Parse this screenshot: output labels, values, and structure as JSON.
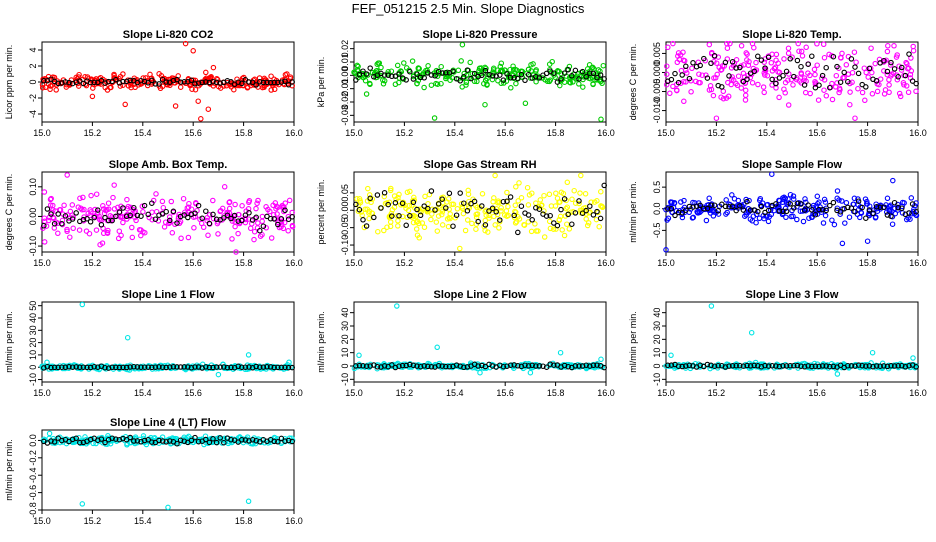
{
  "title": "FEF_051215  2.5 Min. Slope Diagnostics",
  "colors": {
    "background": "#ffffff",
    "overlay": "#000000"
  },
  "chart_data": [
    {
      "type": "scatter",
      "title": "Slope Li-820 CO2",
      "xlabel": "",
      "ylabel": "Licor ppm per min.",
      "color": "#ff0000",
      "xlim": [
        15.0,
        16.0
      ],
      "ylim": [
        -5,
        5
      ],
      "xticks": [
        15.0,
        15.2,
        15.4,
        15.6,
        15.8,
        16.0
      ],
      "yticks": [
        -4,
        -2,
        0,
        2,
        4
      ],
      "xtick_labels": [
        "15.0",
        "15.2",
        "15.4",
        "15.6",
        "15.8",
        "16.0"
      ],
      "ytick_labels": [
        "-4",
        "-2",
        "0",
        "2",
        "4"
      ],
      "spread": 0.6,
      "outliers": [
        [
          15.57,
          4.8
        ],
        [
          15.6,
          3.9
        ],
        [
          15.65,
          1.2
        ],
        [
          15.68,
          1.8
        ],
        [
          15.62,
          -2.4
        ],
        [
          15.66,
          -3.4
        ],
        [
          15.63,
          -4.6
        ],
        [
          15.53,
          -3.0
        ],
        [
          15.33,
          -2.8
        ],
        [
          15.2,
          -1.8
        ]
      ],
      "overlay_spread": 0.2
    },
    {
      "type": "scatter",
      "title": "Slope Li-820 Pressure",
      "xlabel": "",
      "ylabel": "kPa per min.",
      "color": "#00cc00",
      "xlim": [
        15.0,
        16.0
      ],
      "ylim": [
        -0.035,
        0.025
      ],
      "xticks": [
        15.0,
        15.2,
        15.4,
        15.6,
        15.8,
        16.0
      ],
      "yticks": [
        -0.03,
        -0.02,
        -0.01,
        0.0,
        0.01,
        0.02
      ],
      "xtick_labels": [
        "15.0",
        "15.2",
        "15.4",
        "15.6",
        "15.8",
        "16.0"
      ],
      "ytick_labels": [
        "-0.03",
        "-0.02",
        "-0.01",
        "0.00",
        "0.01",
        "0.02"
      ],
      "spread": 0.006,
      "outliers": [
        [
          15.32,
          -0.032
        ],
        [
          15.98,
          -0.033
        ],
        [
          15.43,
          0.023
        ],
        [
          15.52,
          -0.022
        ],
        [
          15.68,
          -0.021
        ],
        [
          15.05,
          -0.014
        ]
      ],
      "overlay_spread": 0.003
    },
    {
      "type": "scatter",
      "title": "Slope Li-820 Temp.",
      "xlabel": "",
      "ylabel": "degrees C per min.",
      "color": "#ff00ff",
      "xlim": [
        15.0,
        16.0
      ],
      "ylim": [
        -0.013,
        0.008
      ],
      "xticks": [
        15.0,
        15.2,
        15.4,
        15.6,
        15.8,
        16.0
      ],
      "yticks": [
        -0.01,
        -0.005,
        0.0,
        0.005
      ],
      "xtick_labels": [
        "15.0",
        "15.2",
        "15.4",
        "15.6",
        "15.8",
        "16.0"
      ],
      "ytick_labels": [
        "-0.010",
        "-0.005",
        "0.000",
        "0.005"
      ],
      "spread": 0.005,
      "outliers": [
        [
          15.2,
          -0.012
        ],
        [
          15.75,
          -0.012
        ],
        [
          15.88,
          0.007
        ],
        [
          15.3,
          0.007
        ]
      ],
      "overlay_spread": 0.004
    },
    {
      "type": "scatter",
      "title": "Slope Amb. Box Temp.",
      "xlabel": "",
      "ylabel": "degrees C per min.",
      "color": "#ff00ff",
      "xlim": [
        15.0,
        16.0
      ],
      "ylim": [
        -0.12,
        0.15
      ],
      "xticks": [
        15.0,
        15.2,
        15.4,
        15.6,
        15.8,
        16.0
      ],
      "yticks": [
        -0.1,
        0.0,
        0.1
      ],
      "xtick_labels": [
        "15.0",
        "15.2",
        "15.4",
        "15.6",
        "15.8",
        "16.0"
      ],
      "ytick_labels": [
        "-0.10",
        "0.00",
        "0.10"
      ],
      "spread": 0.05,
      "outliers": [
        [
          15.1,
          0.14
        ],
        [
          15.77,
          -0.12
        ],
        [
          15.24,
          -0.09
        ]
      ],
      "overlay_spread": 0.03
    },
    {
      "type": "scatter",
      "title": "Slope Gas Stream RH",
      "xlabel": "",
      "ylabel": "percent per min.",
      "color": "#ffff00",
      "xlim": [
        15.0,
        16.0
      ],
      "ylim": [
        -0.12,
        0.11
      ],
      "xticks": [
        15.0,
        15.2,
        15.4,
        15.6,
        15.8,
        16.0
      ],
      "yticks": [
        -0.1,
        -0.05,
        0.0,
        0.05
      ],
      "xtick_labels": [
        "15.0",
        "15.2",
        "15.4",
        "15.6",
        "15.8",
        "16.0"
      ],
      "ytick_labels": [
        "-0.10",
        "-0.05",
        "0.00",
        "0.05"
      ],
      "spread": 0.045,
      "outliers": [
        [
          15.42,
          -0.11
        ],
        [
          15.9,
          0.1
        ],
        [
          15.56,
          0.1
        ]
      ],
      "overlay_spread": 0.035
    },
    {
      "type": "scatter",
      "title": "Slope Sample Flow",
      "xlabel": "",
      "ylabel": "ml/min per min.",
      "color": "#0000ff",
      "xlim": [
        15.0,
        16.0
      ],
      "ylim": [
        -1.0,
        0.85
      ],
      "xticks": [
        15.0,
        15.2,
        15.4,
        15.6,
        15.8,
        16.0
      ],
      "yticks": [
        -0.5,
        0.0,
        0.5
      ],
      "xtick_labels": [
        "15.0",
        "15.2",
        "15.4",
        "15.6",
        "15.8",
        "16.0"
      ],
      "ytick_labels": [
        "-0.5",
        "0.0",
        "0.5"
      ],
      "spread": 0.2,
      "outliers": [
        [
          15.0,
          -0.95
        ],
        [
          15.42,
          0.8
        ],
        [
          15.9,
          0.65
        ],
        [
          15.7,
          -0.8
        ],
        [
          15.8,
          -0.75
        ]
      ],
      "overlay_spread": 0.12
    },
    {
      "type": "scatter",
      "title": "Slope Line 1 Flow",
      "xlabel": "",
      "ylabel": "ml/min per min.",
      "color": "#00e5e5",
      "xlim": [
        15.0,
        16.0
      ],
      "ylim": [
        -12,
        53
      ],
      "xticks": [
        15.0,
        15.2,
        15.4,
        15.6,
        15.8,
        16.0
      ],
      "yticks": [
        -10,
        0,
        10,
        20,
        30,
        40,
        50
      ],
      "xtick_labels": [
        "15.0",
        "15.2",
        "15.4",
        "15.6",
        "15.8",
        "16.0"
      ],
      "ytick_labels": [
        "-10",
        "0",
        "10",
        "20",
        "30",
        "40",
        "50"
      ],
      "spread": 1.2,
      "outliers": [
        [
          15.16,
          51
        ],
        [
          15.34,
          24
        ],
        [
          15.82,
          10
        ],
        [
          15.7,
          -6
        ],
        [
          15.02,
          4
        ],
        [
          15.98,
          4
        ]
      ],
      "overlay_spread": 0.5
    },
    {
      "type": "scatter",
      "title": "Slope Line 2 Flow",
      "xlabel": "",
      "ylabel": "ml/min per min.",
      "color": "#00e5e5",
      "xlim": [
        15.0,
        16.0
      ],
      "ylim": [
        -12,
        48
      ],
      "xticks": [
        15.0,
        15.2,
        15.4,
        15.6,
        15.8,
        16.0
      ],
      "yticks": [
        -10,
        0,
        10,
        20,
        30,
        40
      ],
      "xtick_labels": [
        "15.0",
        "15.2",
        "15.4",
        "15.6",
        "15.8",
        "16.0"
      ],
      "ytick_labels": [
        "-10",
        "0",
        "10",
        "20",
        "30",
        "40"
      ],
      "spread": 1.2,
      "outliers": [
        [
          15.17,
          45
        ],
        [
          15.33,
          14
        ],
        [
          15.82,
          10
        ],
        [
          15.5,
          -5
        ],
        [
          15.7,
          -5
        ],
        [
          15.02,
          8
        ],
        [
          15.98,
          5
        ]
      ],
      "overlay_spread": 0.8
    },
    {
      "type": "scatter",
      "title": "Slope Line 3 Flow",
      "xlabel": "",
      "ylabel": "ml/min per min.",
      "color": "#00e5e5",
      "xlim": [
        15.0,
        16.0
      ],
      "ylim": [
        -12,
        48
      ],
      "xticks": [
        15.0,
        15.2,
        15.4,
        15.6,
        15.8,
        16.0
      ],
      "yticks": [
        -10,
        0,
        10,
        20,
        30,
        40
      ],
      "xtick_labels": [
        "15.0",
        "15.2",
        "15.4",
        "15.6",
        "15.8",
        "16.0"
      ],
      "ytick_labels": [
        "-10",
        "0",
        "10",
        "20",
        "30",
        "40"
      ],
      "spread": 1.2,
      "outliers": [
        [
          15.18,
          45
        ],
        [
          15.34,
          25
        ],
        [
          15.82,
          10
        ],
        [
          15.68,
          -6
        ],
        [
          15.02,
          8
        ],
        [
          15.98,
          6
        ]
      ],
      "overlay_spread": 0.6
    },
    {
      "type": "scatter",
      "title": "Slope Line 4 (LT) Flow",
      "xlabel": "",
      "ylabel": "ml/min per min.",
      "color": "#00e5e5",
      "xlim": [
        15.0,
        16.0
      ],
      "ylim": [
        -0.8,
        0.12
      ],
      "xticks": [
        15.0,
        15.2,
        15.4,
        15.6,
        15.8,
        16.0
      ],
      "yticks": [
        -0.8,
        -0.6,
        -0.4,
        -0.2,
        0.0
      ],
      "xtick_labels": [
        "15.0",
        "15.2",
        "15.4",
        "15.6",
        "15.8",
        "16.0"
      ],
      "ytick_labels": [
        "-0.8",
        "-0.6",
        "-0.4",
        "-0.2",
        "0.0"
      ],
      "spread": 0.03,
      "outliers": [
        [
          15.16,
          -0.73
        ],
        [
          15.5,
          -0.77
        ],
        [
          15.82,
          -0.7
        ],
        [
          15.03,
          0.08
        ]
      ],
      "overlay_spread": 0.02
    }
  ]
}
